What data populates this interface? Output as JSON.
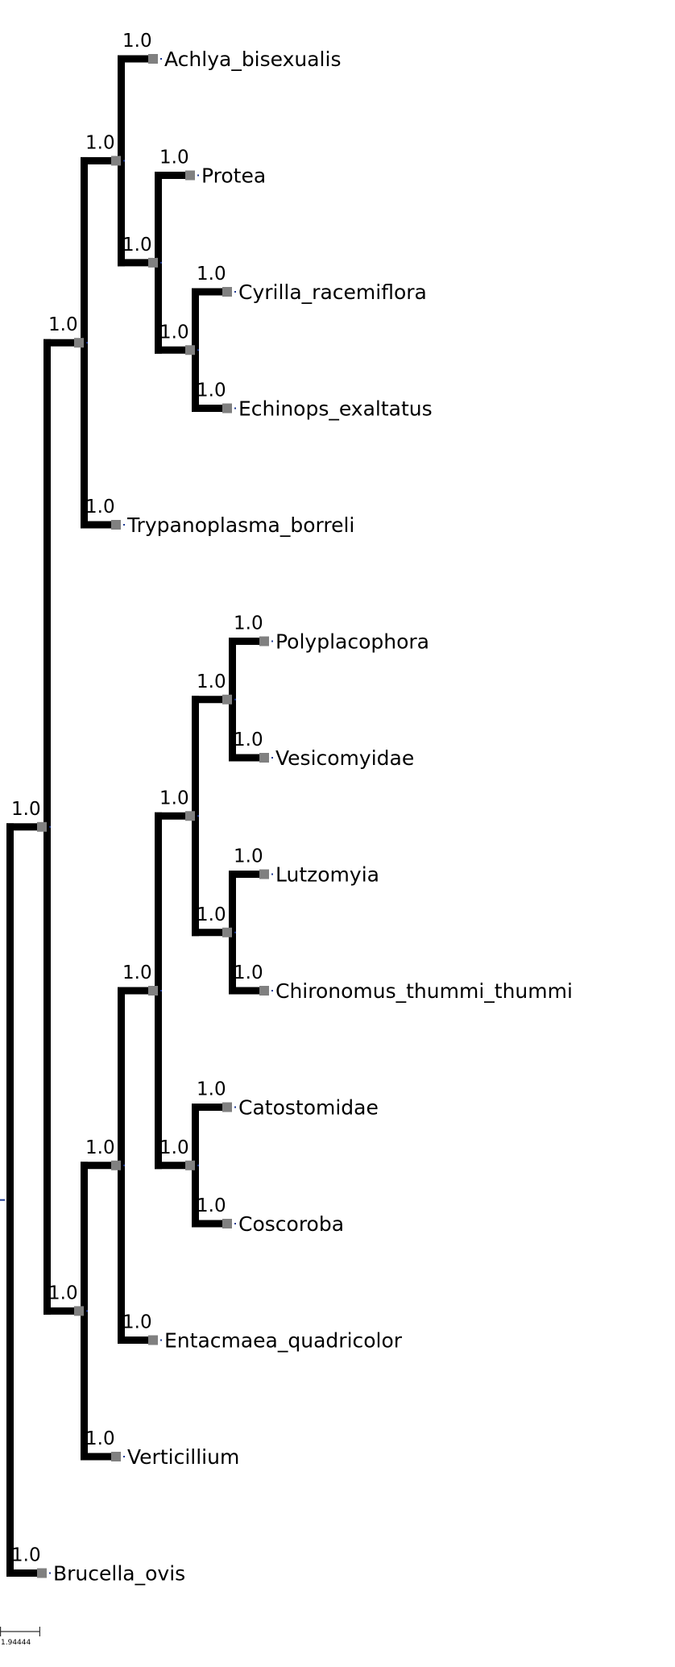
{
  "tree": {
    "leaves": [
      "Achlya_bisexualis",
      "Protea",
      "Cyrilla_racemiflora",
      "Echinops_exaltatus",
      "Trypanoplasma_borreli",
      "Polyplacophora",
      "Vesicomyidae",
      "Lutzomyia",
      "Chironomus_thummi_thummi",
      "Catostomidae",
      "Coscoroba",
      "Entacmaea_quadricolor",
      "Verticillium",
      "Brucella_ovis"
    ],
    "support_label": "1.0",
    "topology": "((((Achlya_bisexualis,(Protea,(Cyrilla_racemiflora,Echinops_exaltatus))),Trypanoplasma_borreli),(((((Polyplacophora,Vesicomyidae),(Lutzomyia,Chironomus_thummi_thummi)),(Catostomidae,Coscoroba)),Entacmaea_quadricolor),Verticillium)),Brucella_ovis)"
  },
  "scale_bar": {
    "label": "1.94444"
  },
  "colors": {
    "branch": "#000000",
    "support_box": "#808080",
    "node_dot": "#1f3a93"
  }
}
